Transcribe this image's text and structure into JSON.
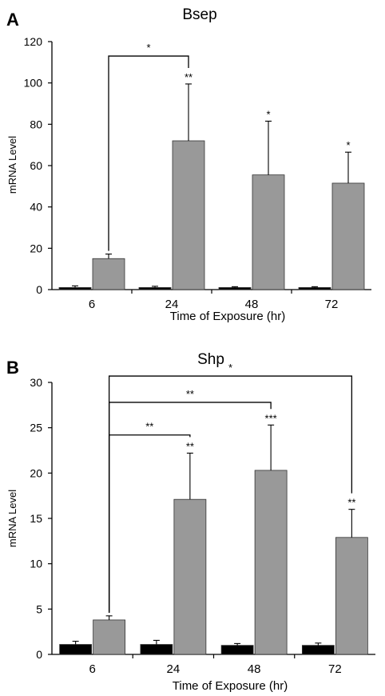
{
  "colors": {
    "control": "#000000",
    "treated": "#999999",
    "axis": "#000000"
  },
  "chart_data": [
    {
      "type": "bar",
      "panel_label": "A",
      "title": "Bsep",
      "xlabel": "Time of Exposure (hr)",
      "ylabel": "mRNA Level",
      "categories": [
        "6",
        "24",
        "48",
        "72"
      ],
      "ylim": [
        0,
        120
      ],
      "yticks": [
        "0",
        "20",
        "40",
        "60",
        "80",
        "100",
        "120"
      ],
      "grid": false,
      "series": [
        {
          "values": [
            1,
            1,
            1,
            1
          ],
          "error": [
            0.8,
            0.6,
            0.4,
            0.4
          ],
          "color": "#000000"
        },
        {
          "values": [
            15,
            72,
            55.5,
            51.5
          ],
          "error": [
            2.2,
            27.5,
            26,
            15
          ],
          "color": "#999999",
          "annotations": [
            "",
            "**",
            "*",
            "*"
          ]
        }
      ],
      "brackets": [
        {
          "from": "6",
          "to": "24",
          "label": "*",
          "level": 113
        }
      ]
    },
    {
      "type": "bar",
      "panel_label": "B",
      "title": "Shp",
      "xlabel": "Time of Exposure (hr)",
      "ylabel": "mRNA Level",
      "categories": [
        "6",
        "24",
        "48",
        "72"
      ],
      "ylim": [
        0,
        30
      ],
      "yticks": [
        "0",
        "5",
        "10",
        "15",
        "20",
        "25",
        "30"
      ],
      "grid": false,
      "series": [
        {
          "values": [
            1.1,
            1.1,
            1.0,
            1.0
          ],
          "error": [
            0.35,
            0.45,
            0.2,
            0.25
          ],
          "color": "#000000"
        },
        {
          "values": [
            3.8,
            17.1,
            20.3,
            12.9
          ],
          "error": [
            0.45,
            5.1,
            5.0,
            3.1
          ],
          "color": "#999999",
          "annotations": [
            "",
            "**",
            "***",
            "**"
          ]
        }
      ],
      "brackets": [
        {
          "from": "6",
          "to": "24",
          "label": "**",
          "level": 24.2
        },
        {
          "from": "6",
          "to": "48",
          "label": "**",
          "level": 27.8
        },
        {
          "from": "6",
          "to": "72",
          "label": "*",
          "level": 30.7
        }
      ]
    }
  ]
}
